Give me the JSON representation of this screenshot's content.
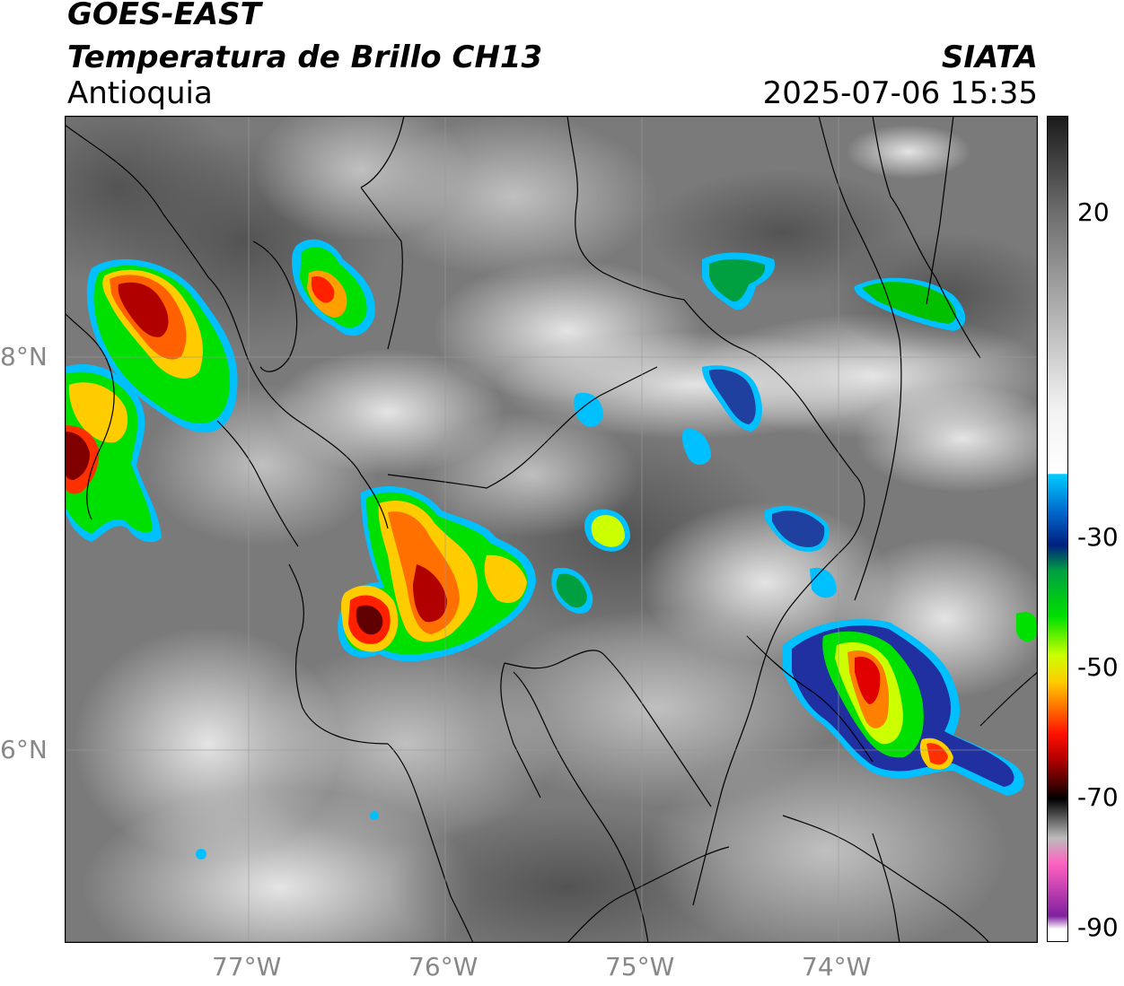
{
  "header": {
    "satellite": "GOES-EAST",
    "product": "Temperatura de Brillo CH13",
    "region": "Antioquia",
    "agency": "SIATA",
    "timestamp": "2025-07-06 15:35"
  },
  "map": {
    "lat_labels": [
      "8°N",
      "6°N"
    ],
    "lon_labels": [
      "77°W",
      "76°W",
      "75°W",
      "74°W"
    ],
    "lon_range": [
      -77.95,
      -73.05
    ],
    "lat_range": [
      5.2,
      9.4
    ],
    "gridlines": true,
    "colors": {
      "background_gray": "#7a7a7a",
      "border": "#000000",
      "gridline": "#9a9a9a"
    }
  },
  "colorbar": {
    "ticks": [
      "20",
      "-30",
      "-50",
      "-70",
      "-90"
    ],
    "tick_values": [
      20,
      -30,
      -50,
      -70,
      -90
    ],
    "range": [
      -92,
      35
    ],
    "stops": [
      {
        "t": 35,
        "c": "#1a1a1a"
      },
      {
        "t": 20,
        "c": "#6e6e6e"
      },
      {
        "t": -10,
        "c": "#f2f2f2"
      },
      {
        "t": -20,
        "c": "#ffffff"
      },
      {
        "t": -20.1,
        "c": "#00ccff"
      },
      {
        "t": -26,
        "c": "#0066cc"
      },
      {
        "t": -31,
        "c": "#002080"
      },
      {
        "t": -35,
        "c": "#00a040"
      },
      {
        "t": -42,
        "c": "#00e000"
      },
      {
        "t": -48,
        "c": "#ccff00"
      },
      {
        "t": -52,
        "c": "#ffcc00"
      },
      {
        "t": -56,
        "c": "#ff7000"
      },
      {
        "t": -60,
        "c": "#ff1000"
      },
      {
        "t": -64,
        "c": "#b00000"
      },
      {
        "t": -68,
        "c": "#400000"
      },
      {
        "t": -70,
        "c": "#000000"
      },
      {
        "t": -76,
        "c": "#bbbbbb"
      },
      {
        "t": -80,
        "c": "#ff60c0"
      },
      {
        "t": -88,
        "c": "#8020a0"
      },
      {
        "t": -90,
        "c": "#ffffff"
      }
    ]
  }
}
